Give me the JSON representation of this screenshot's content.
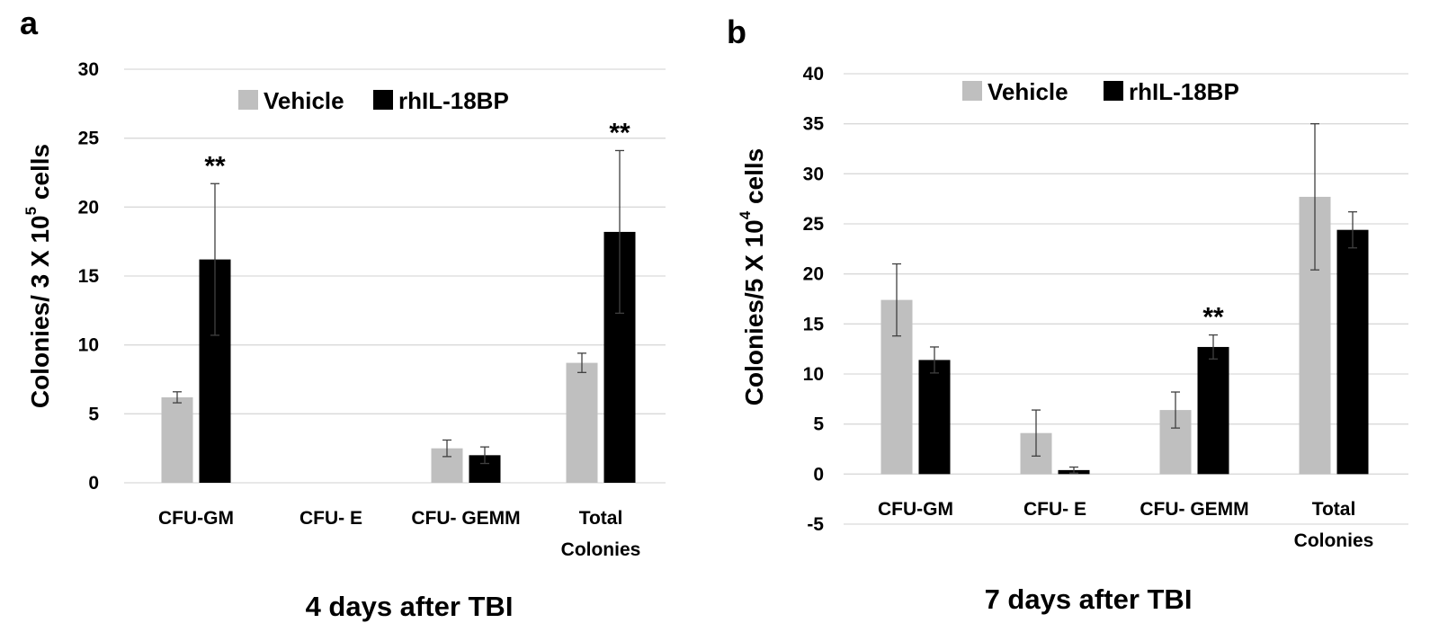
{
  "colors": {
    "vehicle": "#bfbfbf",
    "treatment": "#000000",
    "grid": "#d9d9d9"
  },
  "legend": {
    "vehicle": "Vehicle",
    "treatment": "rhIL-18BP"
  },
  "chart_data": [
    {
      "panel": "a",
      "type": "bar",
      "title": "4 days after TBI",
      "ylabel": "Colonies/ 3 X 10",
      "ylabel_sup": "5",
      "ylabel_suffix": " cells",
      "xlabel": "4 days after TBI",
      "categories": [
        [
          "CFU-GM"
        ],
        [
          "CFU- E"
        ],
        [
          "CFU- GEMM"
        ],
        [
          "Total",
          "Colonies"
        ]
      ],
      "ylim": [
        0,
        30
      ],
      "yticks": [
        0,
        5,
        10,
        15,
        20,
        25,
        30
      ],
      "series": [
        {
          "name": "Vehicle",
          "values": [
            6.2,
            0,
            2.5,
            8.7
          ],
          "errors": [
            0.4,
            0,
            0.6,
            0.7
          ],
          "show": [
            true,
            false,
            true,
            true
          ]
        },
        {
          "name": "rhIL-18BP",
          "values": [
            16.2,
            0,
            2.0,
            18.2
          ],
          "errors": [
            5.5,
            0,
            0.6,
            5.9
          ],
          "show": [
            true,
            false,
            true,
            true
          ]
        }
      ],
      "annotations": [
        {
          "category": 0,
          "series": 1,
          "text": "**"
        },
        {
          "category": 3,
          "series": 1,
          "text": "**"
        }
      ]
    },
    {
      "panel": "b",
      "type": "bar",
      "title": "7 days after TBI",
      "ylabel": "Colonies/5 X 10",
      "ylabel_sup": "4",
      "ylabel_suffix": " cells",
      "xlabel": "7 days after TBI",
      "categories": [
        [
          "CFU-GM"
        ],
        [
          "CFU- E"
        ],
        [
          "CFU- GEMM"
        ],
        [
          "Total",
          "Colonies"
        ]
      ],
      "ylim": [
        -5,
        40
      ],
      "yticks": [
        -5,
        0,
        5,
        10,
        15,
        20,
        25,
        30,
        35,
        40
      ],
      "series": [
        {
          "name": "Vehicle",
          "values": [
            17.4,
            4.1,
            6.4,
            27.7
          ],
          "errors": [
            3.6,
            2.3,
            1.8,
            7.3
          ],
          "show": [
            true,
            true,
            true,
            true
          ]
        },
        {
          "name": "rhIL-18BP",
          "values": [
            11.4,
            0.4,
            12.7,
            24.4
          ],
          "errors": [
            1.3,
            0.3,
            1.2,
            1.8
          ],
          "show": [
            true,
            true,
            true,
            true
          ]
        }
      ],
      "annotations": [
        {
          "category": 2,
          "series": 1,
          "text": "**"
        }
      ]
    }
  ]
}
